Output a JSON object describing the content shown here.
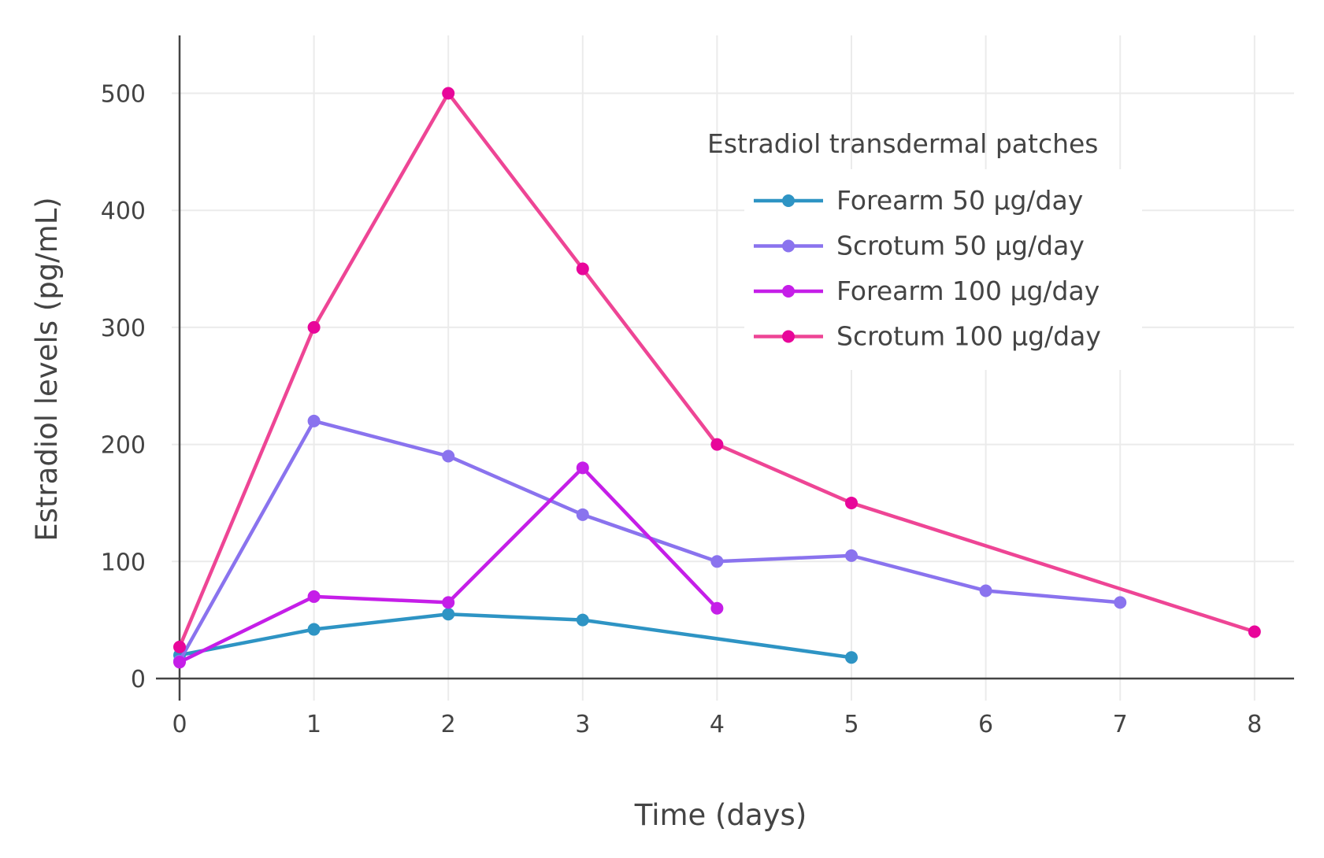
{
  "chart_data": {
    "type": "line",
    "xlabel": "Time (days)",
    "ylabel": "Estradiol levels (pg/mL)",
    "xlim": [
      0,
      8.25
    ],
    "ylim": [
      0,
      550
    ],
    "xticks": [
      0,
      1,
      2,
      3,
      4,
      5,
      6,
      7,
      8
    ],
    "yticks": [
      0,
      100,
      200,
      300,
      400,
      500
    ],
    "grid": true,
    "legend": {
      "title": "Estradiol transdermal patches",
      "placement": "top-right"
    },
    "series": [
      {
        "name": "Forearm 50 μg/day",
        "color": "#2e94c4",
        "x": [
          0,
          1,
          2,
          3,
          5
        ],
        "y": [
          20,
          42,
          55,
          50,
          18
        ]
      },
      {
        "name": "Scrotum 50 μg/day",
        "color": "#8a73ee",
        "x": [
          0,
          1,
          2,
          3,
          4,
          5,
          6,
          7
        ],
        "y": [
          15,
          220,
          190,
          140,
          100,
          105,
          75,
          65
        ]
      },
      {
        "name": "Forearm 100 μg/day",
        "color": "#c51ee8",
        "x": [
          0,
          1,
          2,
          3,
          4
        ],
        "y": [
          14,
          70,
          65,
          180,
          60
        ]
      },
      {
        "name": "Scrotum 100 μg/day",
        "color": "#ee4595",
        "marker_color": "#e8069a",
        "x": [
          0,
          1,
          2,
          3,
          4,
          5,
          8
        ],
        "y": [
          27,
          300,
          500,
          350,
          200,
          150,
          40
        ]
      }
    ]
  }
}
